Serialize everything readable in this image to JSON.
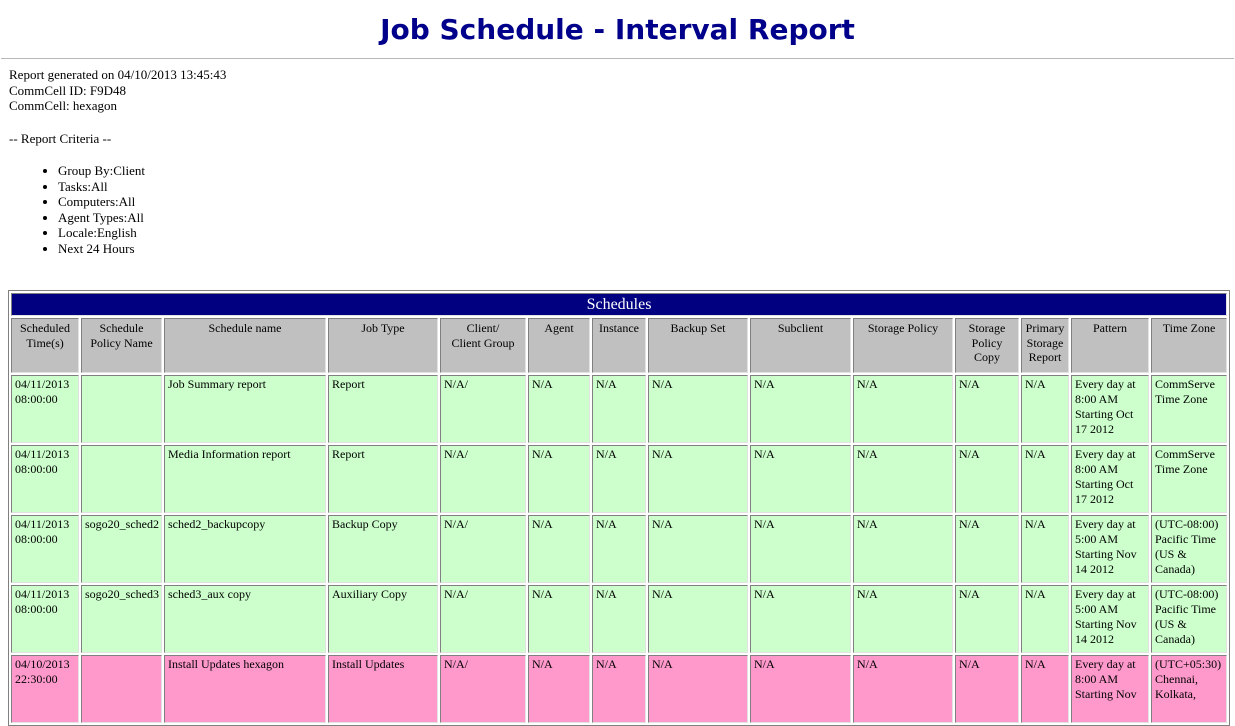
{
  "page": {
    "title": "Job Schedule - Interval Report"
  },
  "meta": {
    "generated": "Report generated on 04/10/2013 13:45:43",
    "commcell_id": "CommCell ID: F9D48",
    "commcell": "CommCell: hexagon",
    "criteria_heading": "-- Report Criteria --",
    "criteria": [
      "Group By:Client",
      "Tasks:All",
      "Computers:All",
      "Agent Types:All",
      "Locale:English",
      "Next 24 Hours"
    ]
  },
  "table": {
    "title": "Schedules",
    "columns": [
      "Scheduled Time(s)",
      "Schedule Policy Name",
      "Schedule name",
      "Job Type",
      "Client/\nClient Group",
      "Agent",
      "Instance",
      "Backup Set",
      "Subclient",
      "Storage Policy",
      "Storage Policy Copy",
      "Primary Storage Report",
      "Pattern",
      "Time Zone"
    ],
    "rows": [
      {
        "highlight": "green",
        "cells": [
          "04/11/2013 08:00:00",
          "",
          "Job Summary report",
          "Report",
          "N/A/",
          "N/A",
          "N/A",
          "N/A",
          "N/A",
          "N/A",
          "N/A",
          "N/A",
          "Every day at 8:00 AM Starting Oct 17 2012",
          "CommServe Time Zone"
        ]
      },
      {
        "highlight": "green",
        "cells": [
          "04/11/2013 08:00:00",
          "",
          "Media Information report",
          "Report",
          "N/A/",
          "N/A",
          "N/A",
          "N/A",
          "N/A",
          "N/A",
          "N/A",
          "N/A",
          "Every day at 8:00 AM Starting Oct 17 2012",
          "CommServe Time Zone"
        ]
      },
      {
        "highlight": "green",
        "cells": [
          "04/11/2013 08:00:00",
          "sogo20_sched2",
          "sched2_backupcopy",
          "Backup Copy",
          "N/A/",
          "N/A",
          "N/A",
          "N/A",
          "N/A",
          "N/A",
          "N/A",
          "N/A",
          "Every day at 5:00 AM Starting Nov 14 2012",
          "(UTC-08:00) Pacific Time (US & Canada)"
        ]
      },
      {
        "highlight": "green",
        "cells": [
          "04/11/2013 08:00:00",
          "sogo20_sched3",
          "sched3_aux copy",
          "Auxiliary Copy",
          "N/A/",
          "N/A",
          "N/A",
          "N/A",
          "N/A",
          "N/A",
          "N/A",
          "N/A",
          "Every day at 5:00 AM Starting Nov 14 2012",
          "(UTC-08:00) Pacific Time (US & Canada)"
        ]
      },
      {
        "highlight": "pink",
        "cells": [
          "04/10/2013 22:30:00",
          "",
          "Install Updates hexagon",
          "Install Updates",
          "N/A/",
          "N/A",
          "N/A",
          "N/A",
          "N/A",
          "N/A",
          "N/A",
          "N/A",
          "Every day at 8:00 AM Starting Nov",
          "(UTC+05:30) Chennai, Kolkata,"
        ]
      }
    ]
  },
  "colors": {
    "title_text": "#00008B",
    "band_bg": "#000080",
    "band_text": "#FFFFFF",
    "header_bg": "#C0C0C0",
    "row_green": "#CCFFCC",
    "row_pink": "#FF99CC"
  }
}
